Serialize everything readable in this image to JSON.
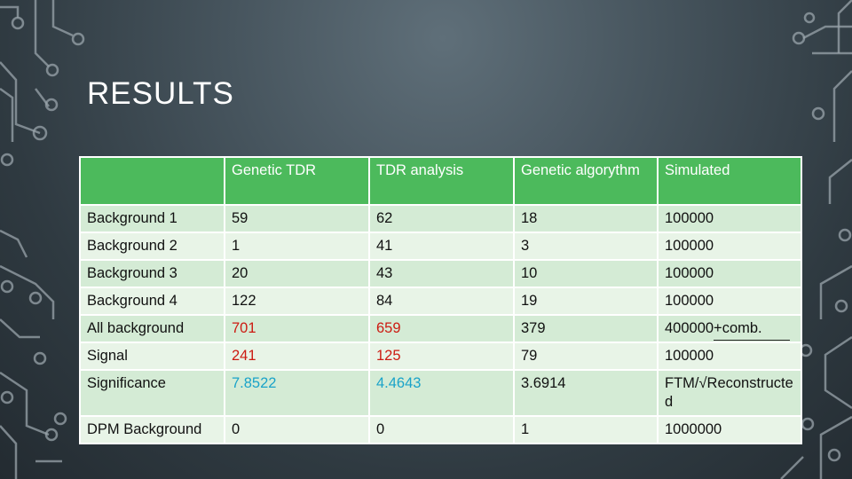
{
  "slide": {
    "title": "RESULTS"
  },
  "table": {
    "headers": [
      "",
      "Genetic TDR",
      "TDR analysis",
      "Genetic algorythm",
      "Simulated"
    ],
    "rows": [
      {
        "label": "Background 1",
        "cells": [
          "59",
          "62",
          "18",
          "100000"
        ]
      },
      {
        "label": "Background 2",
        "cells": [
          "1",
          "41",
          "3",
          "100000"
        ]
      },
      {
        "label": "Background 3",
        "cells": [
          "20",
          "43",
          "10",
          "100000"
        ]
      },
      {
        "label": "Background 4",
        "cells": [
          "122",
          "84",
          "19",
          "100000"
        ]
      },
      {
        "label": "All background",
        "cells": [
          "701",
          "659",
          "379",
          "400000+comb."
        ]
      },
      {
        "label": "Signal",
        "cells": [
          "241",
          "125",
          "79",
          "100000"
        ]
      },
      {
        "label": "Significance",
        "cells": [
          "7.8522",
          "4.4643",
          "3.6914",
          "FTM/√Reconstructed"
        ]
      },
      {
        "label": "DPM Background",
        "cells": [
          "0",
          "0",
          "1",
          "1000000"
        ]
      }
    ]
  },
  "colors": {
    "header_bg": "#4cba5c",
    "row_bg_odd": "#d4ebd5",
    "row_bg_even": "#e8f4e7",
    "highlight_red": "#cc1b12",
    "highlight_cyan": "#1aa3c9"
  }
}
